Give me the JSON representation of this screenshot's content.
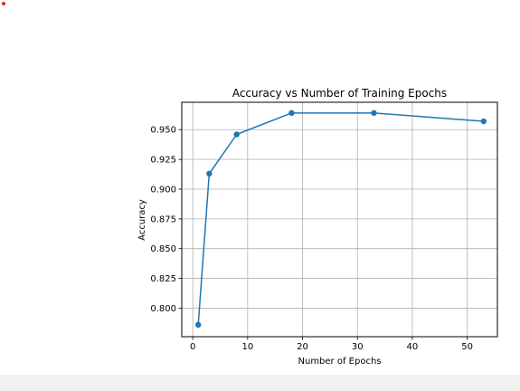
{
  "chart_data": {
    "type": "line",
    "title": "Accuracy vs Number of Training Epochs",
    "xlabel": "Number of Epochs",
    "ylabel": "Accuracy",
    "x": [
      1,
      3,
      8,
      18,
      33,
      53
    ],
    "series": [
      {
        "values": [
          0.786,
          0.913,
          0.946,
          0.964,
          0.964,
          0.957
        ]
      }
    ],
    "xlim": [
      -2,
      55.5
    ],
    "ylim": [
      0.776,
      0.973
    ],
    "xticks": [
      0,
      10,
      20,
      30,
      40,
      50
    ],
    "yticks": [
      0.8,
      0.825,
      0.85,
      0.875,
      0.9,
      0.925,
      0.95
    ],
    "grid": true,
    "marker": "circle",
    "color": "#1f77b4"
  },
  "colors": {
    "series": "#1f77b4",
    "grid": "#b0b0b0",
    "corner_dot": "#d62728",
    "bottom_band": "#f1f1f1"
  }
}
